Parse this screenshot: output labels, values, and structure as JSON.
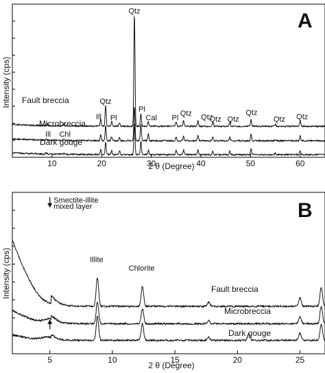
{
  "chart_data": [
    {
      "type": "line",
      "panel_letter": "A",
      "xlabel": "2 θ (Degree)",
      "ylabel": "Intensity (cps)",
      "xlim": [
        2,
        65
      ],
      "x_ticks": [
        "10",
        "20",
        "30",
        "40",
        "50",
        "60"
      ],
      "y_ticks_labeled": false,
      "grid": false,
      "series": [
        {
          "name": "Fault breccia",
          "baseline": 2.35,
          "peaks": [
            [
              9.0,
              0.18
            ],
            [
              12.4,
              0.12
            ],
            [
              19.8,
              0.55
            ],
            [
              20.8,
              1.6
            ],
            [
              22.0,
              0.35
            ],
            [
              23.6,
              0.25
            ],
            [
              26.6,
              8.6
            ],
            [
              27.9,
              0.95
            ],
            [
              29.4,
              0.35
            ],
            [
              35.0,
              0.35
            ],
            [
              36.5,
              0.45
            ],
            [
              39.4,
              0.4
            ],
            [
              42.4,
              0.35
            ],
            [
              45.8,
              0.32
            ],
            [
              50.1,
              0.55
            ],
            [
              55.0,
              0.15
            ],
            [
              60.0,
              0.45
            ]
          ]
        },
        {
          "name": "Microbreccia",
          "baseline": 1.25,
          "peaks": [
            [
              8.8,
              0.12
            ],
            [
              12.4,
              0.1
            ],
            [
              19.8,
              0.45
            ],
            [
              20.8,
              1.15
            ],
            [
              22.0,
              0.35
            ],
            [
              23.6,
              0.25
            ],
            [
              26.6,
              2.6
            ],
            [
              27.9,
              1.3
            ],
            [
              29.4,
              0.55
            ],
            [
              35.0,
              0.3
            ],
            [
              36.5,
              0.35
            ],
            [
              39.4,
              0.4
            ],
            [
              42.4,
              0.3
            ],
            [
              45.8,
              0.28
            ],
            [
              50.1,
              0.5
            ],
            [
              55.0,
              0.12
            ],
            [
              60.0,
              0.38
            ]
          ]
        },
        {
          "name": "Dark gouge",
          "baseline": 0.2,
          "peaks": [
            [
              8.8,
              0.1
            ],
            [
              12.4,
              0.08
            ],
            [
              19.8,
              0.4
            ],
            [
              20.8,
              0.95
            ],
            [
              22.0,
              0.3
            ],
            [
              23.6,
              0.25
            ],
            [
              26.6,
              2.4
            ],
            [
              27.9,
              1.0
            ],
            [
              29.4,
              0.35
            ],
            [
              35.0,
              0.35
            ],
            [
              36.5,
              0.35
            ],
            [
              39.4,
              0.35
            ],
            [
              42.4,
              0.3
            ],
            [
              45.8,
              0.3
            ],
            [
              50.1,
              0.45
            ],
            [
              55.0,
              0.12
            ],
            [
              60.0,
              0.35
            ]
          ]
        }
      ],
      "annotations": [
        {
          "text": "Qtz",
          "x": 26.6,
          "y": 10.9
        },
        {
          "text": "Qtz",
          "x": 20.8,
          "y": 4.05
        },
        {
          "text": "Pl",
          "x": 28.1,
          "y": 3.45
        },
        {
          "text": "Ill",
          "x": 19.4,
          "y": 2.9
        },
        {
          "text": "Pl",
          "x": 22.4,
          "y": 2.8
        },
        {
          "text": "Cal",
          "x": 30.0,
          "y": 2.8
        },
        {
          "text": "Pl",
          "x": 34.8,
          "y": 2.8
        },
        {
          "text": "Qtz",
          "x": 37.0,
          "y": 3.15
        },
        {
          "text": "Qtz",
          "x": 41.2,
          "y": 2.85
        },
        {
          "text": "Qtz",
          "x": 42.9,
          "y": 2.7
        },
        {
          "text": "Qtz",
          "x": 46.5,
          "y": 2.7
        },
        {
          "text": "Qtz",
          "x": 50.2,
          "y": 3.2
        },
        {
          "text": "Qtz",
          "x": 55.8,
          "y": 2.7
        },
        {
          "text": "Qtz",
          "x": 60.4,
          "y": 2.9
        },
        {
          "text": "Ill",
          "x": 9.2,
          "y": 1.55
        },
        {
          "text": "Chl",
          "x": 12.6,
          "y": 1.55
        }
      ],
      "ylim": [
        0,
        11.6
      ]
    },
    {
      "type": "line",
      "panel_letter": "B",
      "xlabel": "2 θ (Degree)",
      "ylabel": "Intensity (cps)",
      "xlim": [
        2,
        27
      ],
      "x_ticks": [
        "5",
        "10",
        "15",
        "20",
        "25"
      ],
      "y_ticks_labeled": false,
      "grid": false,
      "series": [
        {
          "name": "Fault breccia",
          "baseline": 3.0,
          "low_angle": {
            "start": 5.1,
            "left_amp": 4.2,
            "hump_center": 5.05,
            "hump_amp": 0.2,
            "decay": 0.55
          },
          "peaks": [
            [
              8.8,
              1.8
            ],
            [
              12.4,
              1.3
            ],
            [
              17.7,
              0.25
            ],
            [
              25.0,
              0.55
            ],
            [
              26.7,
              1.2
            ]
          ]
        },
        {
          "name": "Microbreccia",
          "baseline": 1.9,
          "low_angle": {
            "start": 5.1,
            "left_amp": 0.85,
            "hump_center": 5.0,
            "hump_amp": 0.3,
            "decay": 0.55
          },
          "peaks": [
            [
              8.8,
              1.35
            ],
            [
              12.4,
              0.95
            ],
            [
              17.7,
              0.2
            ],
            [
              25.0,
              0.45
            ],
            [
              26.7,
              1.1
            ]
          ]
        },
        {
          "name": "Dark gouge",
          "baseline": 0.85,
          "low_angle": {
            "start": 5.1,
            "left_amp": 0.35,
            "hump_center": 4.8,
            "hump_amp": 0.2,
            "decay": 0.55
          },
          "peaks": [
            [
              8.8,
              1.5
            ],
            [
              12.4,
              1.05
            ],
            [
              17.7,
              0.2
            ],
            [
              20.9,
              0.4
            ],
            [
              25.0,
              0.45
            ],
            [
              26.7,
              1.0
            ]
          ]
        }
      ],
      "annotations": [
        {
          "text": "Smectite-illite",
          "x": 5.3,
          "y": 9.55
        },
        {
          "text": "mixed layer",
          "x": 5.3,
          "y": 9.15
        },
        {
          "text": "Illite",
          "x": 8.2,
          "y": 5.8
        },
        {
          "text": "Chlorite",
          "x": 11.3,
          "y": 5.25
        }
      ],
      "markers": [
        {
          "type": "arrow-down",
          "x": 5.0,
          "y_from": 9.9,
          "y_to": 9.25
        },
        {
          "type": "arrow-up",
          "x": 5.0,
          "y_from": 1.55,
          "y_to": 2.15
        }
      ],
      "ylim": [
        0,
        10.2
      ]
    }
  ]
}
